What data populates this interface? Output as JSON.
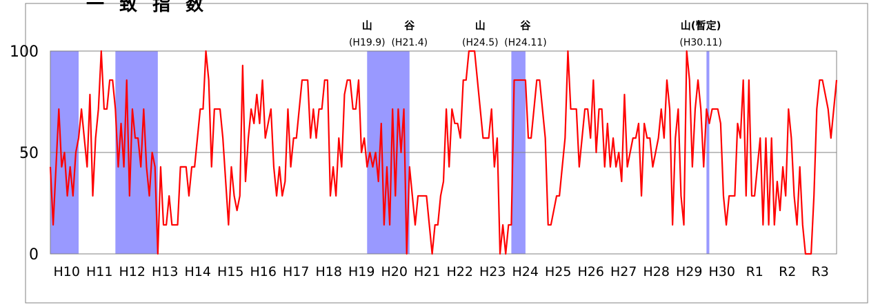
{
  "chart_data": {
    "type": "line",
    "title": "一致指数",
    "ylim": [
      0,
      100
    ],
    "yticks": [
      0,
      50,
      100
    ],
    "grid": "horizontal",
    "x_tick_labels": [
      "H10",
      "H11",
      "H12",
      "H13",
      "H14",
      "H15",
      "H16",
      "H17",
      "H18",
      "H19",
      "H20",
      "H21",
      "H22",
      "H23",
      "H24",
      "H25",
      "H26",
      "H27",
      "H28",
      "H29",
      "H30",
      "R1",
      "R2",
      "R3"
    ],
    "series": [
      {
        "values": [
          42.9,
          14.3,
          42.9,
          71.4,
          42.9,
          50,
          28.6,
          42.9,
          28.6,
          50,
          57.1,
          71.4,
          57.1,
          42.9,
          78.6,
          28.6,
          57.1,
          71.4,
          100,
          71.4,
          71.4,
          85.7,
          85.7,
          71.4,
          42.9,
          64.3,
          42.9,
          85.7,
          28.6,
          71.4,
          57.1,
          57.1,
          42.9,
          71.4,
          42.9,
          28.6,
          50,
          42.9,
          0,
          42.9,
          14.3,
          14.3,
          28.6,
          14.3,
          14.3,
          14.3,
          42.9,
          42.9,
          42.9,
          28.6,
          42.9,
          42.9,
          57.1,
          71.4,
          71.4,
          100,
          85.7,
          42.9,
          71.4,
          71.4,
          71.4,
          57.1,
          35.7,
          14.3,
          42.9,
          28.6,
          21.4,
          28.6,
          92.9,
          35.7,
          57.1,
          71.4,
          64.3,
          78.6,
          64.3,
          85.7,
          57.1,
          64.3,
          71.4,
          42.9,
          28.6,
          42.9,
          28.6,
          35.7,
          71.4,
          42.9,
          57.1,
          57.1,
          71.4,
          85.7,
          85.7,
          85.7,
          57.1,
          71.4,
          57.1,
          71.4,
          71.4,
          85.7,
          85.7,
          28.6,
          42.9,
          28.6,
          57.1,
          42.9,
          78.6,
          85.7,
          85.7,
          71.4,
          71.4,
          85.7,
          50,
          57.1,
          42.9,
          50,
          42.9,
          50,
          35.7,
          64.3,
          14.3,
          42.9,
          14.3,
          71.4,
          28.6,
          71.4,
          50,
          71.4,
          0,
          42.9,
          28.6,
          14.3,
          28.6,
          28.6,
          28.6,
          28.6,
          14.3,
          0,
          14.3,
          14.3,
          28.6,
          35.7,
          71.4,
          42.9,
          71.4,
          64.3,
          64.3,
          57.1,
          85.7,
          85.7,
          100,
          100,
          100,
          85.7,
          71.4,
          57.1,
          57.1,
          57.1,
          71.4,
          42.9,
          57.1,
          0,
          14.3,
          0,
          14.3,
          14.3,
          85.7,
          85.7,
          85.7,
          85.7,
          85.7,
          57.1,
          57.1,
          71.4,
          85.7,
          85.7,
          71.4,
          57.1,
          14.3,
          14.3,
          21.4,
          28.6,
          28.6,
          42.9,
          57.1,
          100,
          71.4,
          71.4,
          71.4,
          42.9,
          57.1,
          71.4,
          71.4,
          57.1,
          85.7,
          50,
          71.4,
          71.4,
          42.9,
          64.3,
          42.9,
          57.1,
          42.9,
          50,
          35.7,
          78.6,
          42.9,
          50,
          57.1,
          57.1,
          64.3,
          28.6,
          64.3,
          57.1,
          57.1,
          42.9,
          50,
          57.1,
          71.4,
          57.1,
          85.7,
          71.4,
          14.3,
          57.1,
          71.4,
          28.6,
          14.3,
          100,
          85.7,
          42.9,
          71.4,
          85.7,
          71.4,
          42.9,
          71.4,
          64.3,
          71.4,
          71.4,
          71.4,
          64.3,
          28.6,
          14.3,
          28.6,
          28.6,
          28.6,
          64.3,
          57.1,
          85.7,
          28.6,
          85.7,
          28.6,
          28.6,
          42.9,
          57.1,
          14.3,
          57.1,
          14.3,
          57.1,
          14.3,
          35.7,
          21.4,
          42.9,
          28.6,
          71.4,
          57.1,
          28.6,
          14.3,
          42.9,
          14.3,
          0,
          0,
          0,
          28.6,
          71.4,
          85.7,
          85.7,
          78.6,
          71.4,
          57.1,
          71.4,
          85.7
        ]
      }
    ],
    "shaded_periods": [
      {
        "start_index": 0,
        "end_index": 10
      },
      {
        "start_index": 23,
        "end_index": 38
      },
      {
        "start_index": 112,
        "end_index": 127
      },
      {
        "start_index": 163,
        "end_index": 168
      },
      {
        "start_index": 232,
        "end_index": 233
      }
    ],
    "annotations": [
      {
        "label": "山",
        "sub": "(H19.9)",
        "index": 112
      },
      {
        "label": "谷",
        "sub": "(H21.4)",
        "index": 127
      },
      {
        "label": "山",
        "sub": "(H24.5)",
        "index": 152
      },
      {
        "label": "谷",
        "sub": "(H24.11)",
        "index": 168
      },
      {
        "label": "山(暫定)",
        "sub": "(H30.11)",
        "index": 230
      }
    ],
    "colors": {
      "line": "#ff0000",
      "shade": "#9999ff",
      "grid": "#808080",
      "axis": "#000000"
    }
  }
}
